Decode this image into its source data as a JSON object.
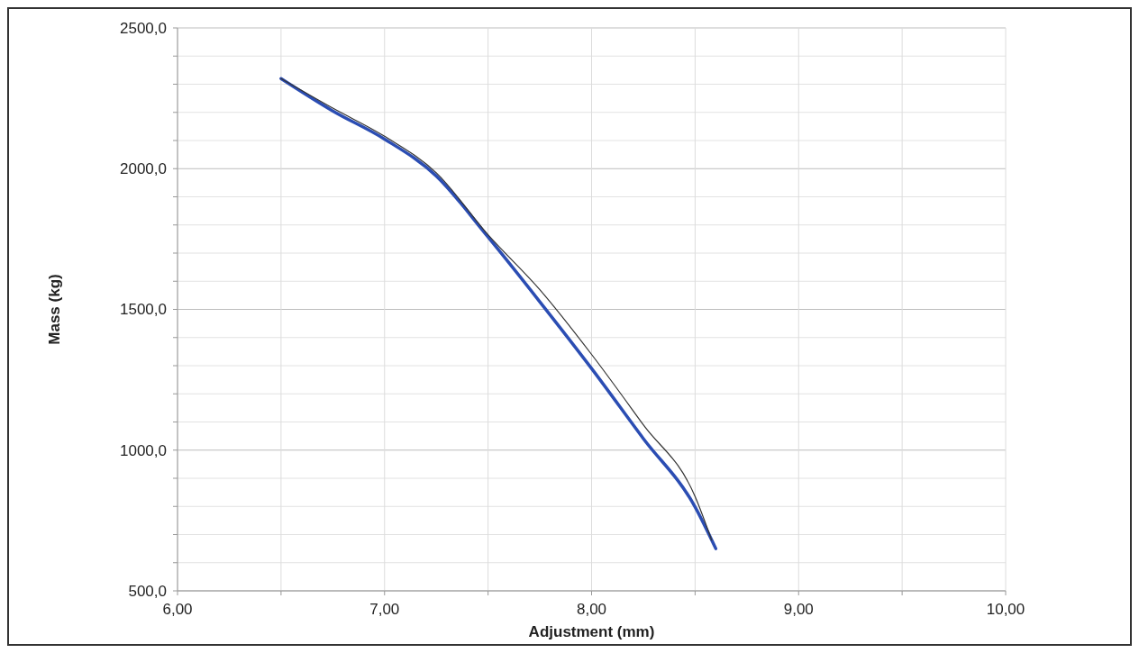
{
  "chart_data": {
    "type": "line",
    "xlabel": "Adjustment (mm)",
    "ylabel": "Mass (kg)",
    "xlim": [
      6,
      10
    ],
    "ylim": [
      500,
      2500
    ],
    "xticks": [
      {
        "value": 6,
        "label": "6,00"
      },
      {
        "value": 6.5,
        "label": null
      },
      {
        "value": 7,
        "label": "7,00"
      },
      {
        "value": 7.5,
        "label": null
      },
      {
        "value": 8,
        "label": "8,00"
      },
      {
        "value": 8.5,
        "label": null
      },
      {
        "value": 9,
        "label": "9,00"
      },
      {
        "value": 9.5,
        "label": null
      },
      {
        "value": 10,
        "label": "10,00"
      }
    ],
    "yticks": [
      {
        "value": 500,
        "label": "500,0"
      },
      {
        "value": 600,
        "label": null
      },
      {
        "value": 700,
        "label": null
      },
      {
        "value": 800,
        "label": null
      },
      {
        "value": 900,
        "label": null
      },
      {
        "value": 1000,
        "label": "1000,0"
      },
      {
        "value": 1100,
        "label": null
      },
      {
        "value": 1200,
        "label": null
      },
      {
        "value": 1300,
        "label": null
      },
      {
        "value": 1400,
        "label": null
      },
      {
        "value": 1500,
        "label": "1500,0"
      },
      {
        "value": 1600,
        "label": null
      },
      {
        "value": 1700,
        "label": null
      },
      {
        "value": 1800,
        "label": null
      },
      {
        "value": 1900,
        "label": null
      },
      {
        "value": 2000,
        "label": "2000,0"
      },
      {
        "value": 2100,
        "label": null
      },
      {
        "value": 2200,
        "label": null
      },
      {
        "value": 2300,
        "label": null
      },
      {
        "value": 2400,
        "label": null
      },
      {
        "value": 2500,
        "label": "2500,0"
      }
    ],
    "grid": true,
    "marker": "none",
    "series": [
      {
        "color": "#2b4db3",
        "x": [
          6.5,
          6.75,
          7.0,
          7.25,
          7.5,
          7.75,
          8.0,
          8.25,
          8.5,
          8.6
        ],
        "values": [
          2320,
          2205,
          2105,
          1974,
          1757,
          1527,
          1290,
          1041,
          798,
          650
        ]
      },
      {
        "color": "#333333",
        "x": [
          6.5,
          6.75,
          7.0,
          7.25,
          7.5,
          7.75,
          8.0,
          8.25,
          8.5,
          8.58
        ],
        "values": [
          2320,
          2215,
          2115,
          1985,
          1765,
          1570,
          1340,
          1090,
          835,
          680
        ]
      }
    ]
  }
}
